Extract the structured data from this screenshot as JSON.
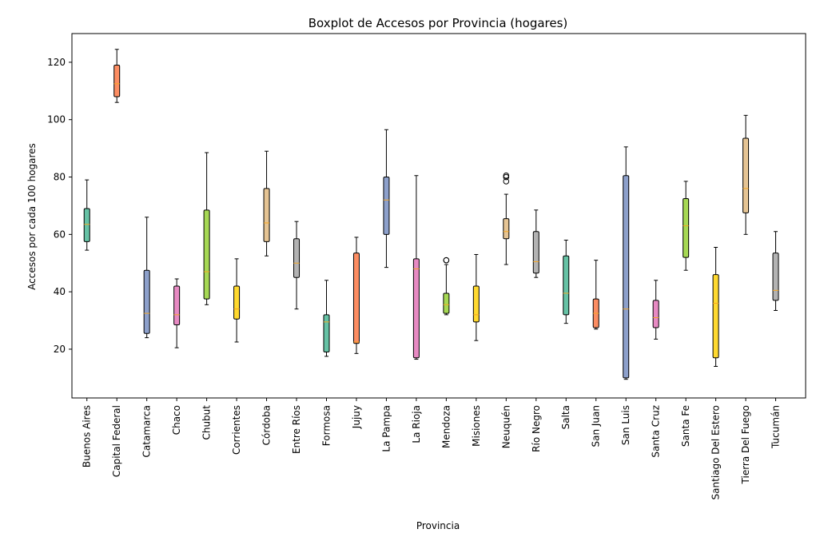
{
  "chart_data": {
    "type": "boxplot",
    "title": "Boxplot de Accesos por Provincia (hogares)",
    "xlabel": "Provincia",
    "ylabel": "Accesos por cada 100 hogares",
    "ylim": [
      3,
      130
    ],
    "yticks": [
      20,
      40,
      60,
      80,
      100,
      120
    ],
    "grid": false,
    "median_color": "#f5a623",
    "boxes": [
      {
        "category": "Buenos Aires",
        "whisker_low": 54.5,
        "q1": 57.5,
        "median": 63.5,
        "q3": 69,
        "whisker_high": 79,
        "color": "#66c2a5",
        "outliers": []
      },
      {
        "category": "Capital Federal",
        "whisker_low": 106,
        "q1": 108,
        "median": 112.5,
        "q3": 119,
        "whisker_high": 124.5,
        "color": "#fc8d62",
        "outliers": []
      },
      {
        "category": "Catamarca",
        "whisker_low": 24,
        "q1": 25.5,
        "median": 32.5,
        "q3": 47.5,
        "whisker_high": 66,
        "color": "#8da0cb",
        "outliers": []
      },
      {
        "category": "Chaco",
        "whisker_low": 20.5,
        "q1": 28.5,
        "median": 32,
        "q3": 42,
        "whisker_high": 44.5,
        "color": "#e78ac3",
        "outliers": []
      },
      {
        "category": "Chubut",
        "whisker_low": 35.5,
        "q1": 37.5,
        "median": 47,
        "q3": 68.5,
        "whisker_high": 88.5,
        "color": "#a6d854",
        "outliers": []
      },
      {
        "category": "Corrientes",
        "whisker_low": 22.5,
        "q1": 30.5,
        "median": 34,
        "q3": 42,
        "whisker_high": 51.5,
        "color": "#ffd92f",
        "outliers": []
      },
      {
        "category": "Córdoba",
        "whisker_low": 52.5,
        "q1": 57.5,
        "median": 64,
        "q3": 76,
        "whisker_high": 89,
        "color": "#e5c494",
        "outliers": []
      },
      {
        "category": "Entre Ríos",
        "whisker_low": 34,
        "q1": 45,
        "median": 50,
        "q3": 58.5,
        "whisker_high": 64.5,
        "color": "#b3b3b3",
        "outliers": []
      },
      {
        "category": "Formosa",
        "whisker_low": 17.5,
        "q1": 19,
        "median": 29.5,
        "q3": 32,
        "whisker_high": 44,
        "color": "#66c2a5",
        "outliers": []
      },
      {
        "category": "Jujuy",
        "whisker_low": 18.5,
        "q1": 22,
        "median": 22.5,
        "q3": 53.5,
        "whisker_high": 59,
        "color": "#fc8d62",
        "outliers": []
      },
      {
        "category": "La Pampa",
        "whisker_low": 48.5,
        "q1": 60,
        "median": 72,
        "q3": 80,
        "whisker_high": 96.5,
        "color": "#8da0cb",
        "outliers": []
      },
      {
        "category": "La Rioja",
        "whisker_low": 16.5,
        "q1": 17,
        "median": 48,
        "q3": 51.5,
        "whisker_high": 80.5,
        "color": "#e78ac3",
        "outliers": []
      },
      {
        "category": "Mendoza",
        "whisker_low": 32,
        "q1": 32.5,
        "median": 35.5,
        "q3": 39.5,
        "whisker_high": 49.5,
        "color": "#a6d854",
        "outliers": [
          51,
          51
        ]
      },
      {
        "category": "Misiones",
        "whisker_low": 23,
        "q1": 29.5,
        "median": 32,
        "q3": 42,
        "whisker_high": 53,
        "color": "#ffd92f",
        "outliers": []
      },
      {
        "category": "Neuquén",
        "whisker_low": 49.5,
        "q1": 58.5,
        "median": 61,
        "q3": 65.5,
        "whisker_high": 74,
        "color": "#e5c494",
        "outliers": [
          78.5,
          80,
          80.5
        ]
      },
      {
        "category": "Río Negro",
        "whisker_low": 45,
        "q1": 46.5,
        "median": 50.5,
        "q3": 61,
        "whisker_high": 68.5,
        "color": "#b3b3b3",
        "outliers": []
      },
      {
        "category": "Salta",
        "whisker_low": 29,
        "q1": 32,
        "median": 39.5,
        "q3": 52.5,
        "whisker_high": 58,
        "color": "#66c2a5",
        "outliers": []
      },
      {
        "category": "San Juan",
        "whisker_low": 27,
        "q1": 27.5,
        "median": 32.5,
        "q3": 37.5,
        "whisker_high": 51,
        "color": "#fc8d62",
        "outliers": []
      },
      {
        "category": "San Luis",
        "whisker_low": 9.5,
        "q1": 10,
        "median": 34,
        "q3": 80.5,
        "whisker_high": 90.5,
        "color": "#8da0cb",
        "outliers": []
      },
      {
        "category": "Santa Cruz",
        "whisker_low": 23.5,
        "q1": 27.5,
        "median": 31,
        "q3": 37,
        "whisker_high": 44,
        "color": "#e78ac3",
        "outliers": []
      },
      {
        "category": "Santa Fe",
        "whisker_low": 47.5,
        "q1": 52,
        "median": 63,
        "q3": 72.5,
        "whisker_high": 78.5,
        "color": "#a6d854",
        "outliers": []
      },
      {
        "category": "Santiago Del Estero",
        "whisker_low": 14,
        "q1": 17,
        "median": 36,
        "q3": 46,
        "whisker_high": 55.5,
        "color": "#ffd92f",
        "outliers": []
      },
      {
        "category": "Tierra Del Fuego",
        "whisker_low": 60,
        "q1": 67.5,
        "median": 76,
        "q3": 93.5,
        "whisker_high": 101.5,
        "color": "#e5c494",
        "outliers": []
      },
      {
        "category": "Tucumán",
        "whisker_low": 33.5,
        "q1": 37,
        "median": 40.5,
        "q3": 53.5,
        "whisker_high": 61,
        "color": "#b3b3b3",
        "outliers": []
      }
    ]
  }
}
